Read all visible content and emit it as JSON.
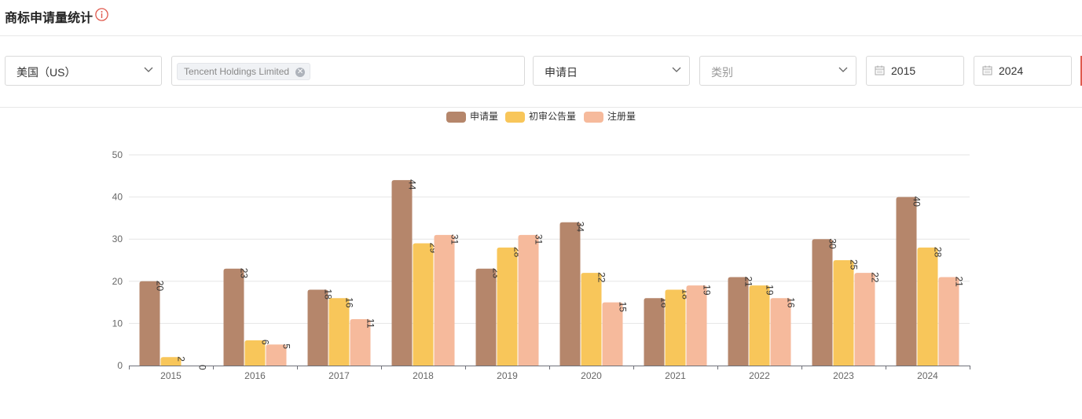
{
  "header": {
    "title": "商标申请量统计",
    "info_icon": "info-circle-icon"
  },
  "filters": {
    "country": {
      "value": "美国（US）",
      "icon": "chevron-down-icon"
    },
    "applicant_tag": {
      "value": "Tencent Holdings Limited",
      "close_icon": "close-circle-icon"
    },
    "date_type": {
      "value": "申请日",
      "icon": "chevron-down-icon"
    },
    "category": {
      "placeholder": "类别",
      "icon": "chevron-down-icon"
    },
    "start_year": {
      "value": "2015",
      "icon": "calendar-icon"
    },
    "end_year": {
      "value": "2024",
      "icon": "calendar-icon"
    }
  },
  "colors": {
    "applications": "#b5866b",
    "preliminary": "#f8c65a",
    "registrations": "#f6ba9c",
    "accent": "#e05a4e"
  },
  "chart_data": {
    "type": "bar",
    "title": "",
    "xlabel": "",
    "ylabel": "",
    "categories": [
      "2015",
      "2016",
      "2017",
      "2018",
      "2019",
      "2020",
      "2021",
      "2022",
      "2023",
      "2024"
    ],
    "series": [
      {
        "name": "申请量",
        "values": [
          20,
          23,
          18,
          44,
          23,
          34,
          16,
          21,
          30,
          40
        ]
      },
      {
        "name": "初审公告量",
        "values": [
          2,
          6,
          16,
          29,
          28,
          22,
          18,
          19,
          25,
          28
        ]
      },
      {
        "name": "注册量",
        "values": [
          0,
          5,
          11,
          31,
          31,
          15,
          19,
          16,
          22,
          21
        ]
      }
    ],
    "ylim": [
      0,
      50
    ],
    "yticks": [
      "0",
      "10",
      "20",
      "30",
      "40",
      "50"
    ],
    "grid": true,
    "legend": "top-center",
    "data_labels": "rotated-90"
  }
}
